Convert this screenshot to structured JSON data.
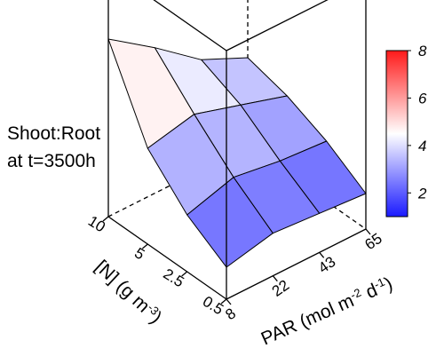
{
  "chart_data": {
    "type": "surface3d",
    "z_title_line1": "Shoot:Root",
    "z_title_line2": "at t=3500h",
    "x_axis": {
      "label_parts": [
        "PAR (mol m",
        "-2",
        " d",
        "-1",
        ")"
      ],
      "tick_labels": [
        "8",
        "22",
        "43",
        "65"
      ],
      "values": [
        8,
        22,
        43,
        65
      ]
    },
    "y_axis": {
      "label_parts": [
        "[N] (g m",
        "-3",
        ")"
      ],
      "tick_labels": [
        "0.5",
        "2.5",
        "5",
        "10"
      ],
      "values": [
        0.5,
        2.5,
        5,
        10
      ]
    },
    "z_range": [
      1,
      8
    ],
    "surface_z": [
      [
        1.9,
        2.6,
        3.7,
        6.0
      ],
      [
        2.2,
        3.0,
        4.0,
        5.1
      ],
      [
        2.1,
        2.8,
        3.6,
        4.1
      ],
      [
        2.0,
        2.7,
        3.2,
        3.5
      ]
    ],
    "colorbar": {
      "min": 1,
      "max": 8,
      "tick_labels": [
        "8",
        "6",
        "4",
        "2"
      ],
      "tick_values": [
        8,
        6,
        4,
        2
      ],
      "colors": {
        "low": "#1a1aff",
        "mid": "#ffffff",
        "high": "#ff1a1a"
      }
    },
    "grid": false,
    "box": true
  }
}
